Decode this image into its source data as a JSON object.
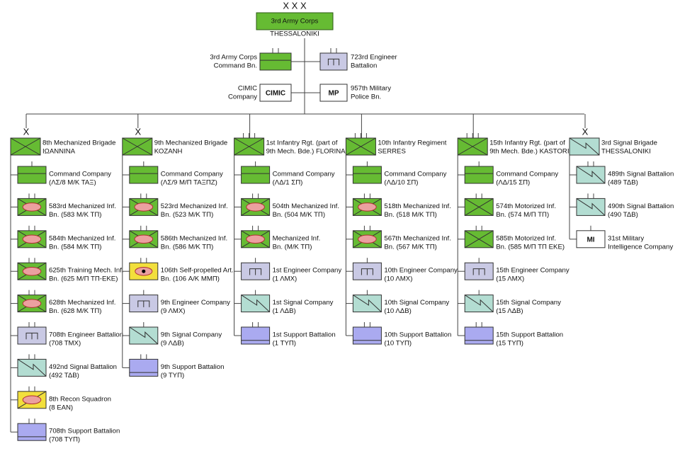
{
  "top": {
    "echelon": "X X X",
    "name": "3rd Army Corps",
    "location": "THESSALONIKI"
  },
  "staff": [
    {
      "lines": [
        "3rd Army Corps",
        "Command Bn."
      ],
      "symbol": "hq",
      "ticks": 2,
      "side": "left"
    },
    {
      "lines": [
        "723rd Engineer",
        "Battalion"
      ],
      "symbol": "engineer",
      "ticks": 2,
      "side": "right"
    },
    {
      "lines": [
        "CIMIC",
        "Company"
      ],
      "symbol": "plain",
      "box_label": "CIMIC",
      "side": "left"
    },
    {
      "lines": [
        "957th Military",
        "Police Bn."
      ],
      "symbol": "plain",
      "box_label": "MP",
      "side": "right"
    }
  ],
  "columns": [
    {
      "echelon": "X",
      "symbol": "brigade",
      "lines": [
        "8th Mechanized Brigade",
        "ΙΩΑΝΝΙΝΑ"
      ],
      "units": [
        {
          "lines": [
            "Command Company",
            "(ΛΣ/8 Μ/Κ ΤΑΞ)"
          ],
          "symbol": "hq",
          "ticks": 1
        },
        {
          "lines": [
            "583rd Mechanized Inf.",
            "Bn. (583 Μ/Κ ΤΠ)"
          ],
          "symbol": "mech",
          "ticks": 2
        },
        {
          "lines": [
            "584th Mechanized Inf.",
            "Bn. (584 Μ/Κ ΤΠ)"
          ],
          "symbol": "mech",
          "ticks": 2
        },
        {
          "lines": [
            "625th Training Mech. Inf.",
            "Bn. (625 Μ/Π ΤΠ-ΕΚΕ)"
          ],
          "symbol": "mech",
          "ticks": 2
        },
        {
          "lines": [
            "628th Mechanized Inf.",
            "Bn. (628 Μ/Κ ΤΠ)"
          ],
          "symbol": "mech",
          "ticks": 2
        },
        {
          "lines": [
            "708th Engineer Battalion",
            "(708 ΤΜΧ)"
          ],
          "symbol": "engineer",
          "ticks": 2
        },
        {
          "lines": [
            "492nd Signal Battalion",
            "(492 ΤΔΒ)"
          ],
          "symbol": "signal",
          "ticks": 2
        },
        {
          "lines": [
            "8th Recon Squadron",
            "(8 ΕΑΝ)"
          ],
          "symbol": "recon",
          "ticks": 2
        },
        {
          "lines": [
            "708th Support Battalion",
            "(708 ΤΥΠ)"
          ],
          "symbol": "support",
          "ticks": 2
        }
      ]
    },
    {
      "echelon": "X",
      "symbol": "brigade",
      "lines": [
        "9th Mechanized Brigade",
        "ΚΟΖΑΝΗ"
      ],
      "units": [
        {
          "lines": [
            "Command Company",
            "(ΛΣ/9 Μ/Π ΤΑΞΠΖ)"
          ],
          "symbol": "hq",
          "ticks": 1
        },
        {
          "lines": [
            "523rd Mechanized Inf.",
            "Bn. (523 Μ/Κ ΤΠ)"
          ],
          "symbol": "mech",
          "ticks": 2
        },
        {
          "lines": [
            "586th Mechanized Inf.",
            "Bn. (586 Μ/Κ ΤΠ)"
          ],
          "symbol": "mech",
          "ticks": 2
        },
        {
          "lines": [
            "106th Self-propelled Art.",
            "Bn. (106 Α/Κ ΜΜΠ)"
          ],
          "symbol": "artillery",
          "ticks": 2
        },
        {
          "lines": [
            "9th Engineer Company",
            "(9 ΛΜΧ)"
          ],
          "symbol": "engineer",
          "ticks": 1
        },
        {
          "lines": [
            "9th Signal Company",
            "(9 ΛΔΒ)"
          ],
          "symbol": "signal",
          "ticks": 1
        },
        {
          "lines": [
            "9th Support Battalion",
            "(9 ΤΥΠ)"
          ],
          "symbol": "support",
          "ticks": 2
        }
      ]
    },
    {
      "ticks": 3,
      "symbol": "brigade",
      "lines": [
        "1st Infantry Rgt. (part of",
        "9th Mech. Bde.) FLORINA"
      ],
      "units": [
        {
          "lines": [
            "Command Company",
            "(ΛΔ/1 ΣΠ)"
          ],
          "symbol": "hq",
          "ticks": 1
        },
        {
          "lines": [
            "504th Mechanized Inf.",
            "Bn. (504 Μ/Κ ΤΠ)"
          ],
          "symbol": "mech",
          "ticks": 2
        },
        {
          "lines": [
            "Mechanized Inf.",
            "Bn. (Μ/Κ ΤΠ)"
          ],
          "symbol": "mech",
          "ticks": 2
        },
        {
          "lines": [
            "1st Engineer Company",
            "(1 ΛΜΧ)"
          ],
          "symbol": "engineer",
          "ticks": 1
        },
        {
          "lines": [
            "1st Signal Company",
            "(1 ΛΔΒ)"
          ],
          "symbol": "signal",
          "ticks": 1
        },
        {
          "lines": [
            "1st Support Battalion",
            "(1 ΤΥΠ)"
          ],
          "symbol": "support",
          "ticks": 2
        }
      ]
    },
    {
      "ticks": 3,
      "symbol": "brigade",
      "lines": [
        "10th Infantry Regiment",
        "SERRES"
      ],
      "units": [
        {
          "lines": [
            "Command Company",
            "(ΛΔ/10 ΣΠ)"
          ],
          "symbol": "hq",
          "ticks": 1
        },
        {
          "lines": [
            "518th Mechanized Inf.",
            "Bn. (518 Μ/Κ ΤΠ)"
          ],
          "symbol": "mech",
          "ticks": 2
        },
        {
          "lines": [
            "567th Mechanized Inf.",
            "Bn. (567 Μ/Κ ΤΠ)"
          ],
          "symbol": "mech",
          "ticks": 2
        },
        {
          "lines": [
            "10th Engineer Company",
            "(10 ΛΜΧ)"
          ],
          "symbol": "engineer",
          "ticks": 1
        },
        {
          "lines": [
            "10th Signal Company",
            "(10 ΛΔΒ)"
          ],
          "symbol": "signal",
          "ticks": 1
        },
        {
          "lines": [
            "10th Support Battalion",
            "(10 ΤΥΠ)"
          ],
          "symbol": "support",
          "ticks": 2
        }
      ]
    },
    {
      "ticks": 3,
      "symbol": "brigade",
      "lines": [
        "15th Infantry Rgt. (part of",
        "9th Mech. Bde.) KASTORIA"
      ],
      "units": [
        {
          "lines": [
            "Command Company",
            "(ΛΔ/15 ΣΠ)"
          ],
          "symbol": "hq",
          "ticks": 1
        },
        {
          "lines": [
            "574th Motorized Inf.",
            "Bn. (574 Μ/Π ΤΠ)"
          ],
          "symbol": "motorized",
          "ticks": 2
        },
        {
          "lines": [
            "585th Motorized Inf.",
            "Bn. (585 Μ/Π ΤΠ ΕΚΕ)"
          ],
          "symbol": "motorized",
          "ticks": 2
        },
        {
          "lines": [
            "15th Engineer Company",
            "(15 ΛΜΧ)"
          ],
          "symbol": "engineer",
          "ticks": 1
        },
        {
          "lines": [
            "15th Signal Company",
            "(15 ΛΔΒ)"
          ],
          "symbol": "signal",
          "ticks": 1
        },
        {
          "lines": [
            "15th Support Battalion",
            "(15 ΤΥΠ)"
          ],
          "symbol": "support",
          "ticks": 2
        }
      ]
    },
    {
      "echelon": "X",
      "symbol": "signal",
      "lines": [
        "3rd Signal Brigade",
        "THESSALONIKI"
      ],
      "units": [
        {
          "lines": [
            "489th Signal Battalion",
            "(489 ΤΔΒ)"
          ],
          "symbol": "signal",
          "ticks": 2
        },
        {
          "lines": [
            "490th Signal Battalion",
            "(490 ΤΔΒ)"
          ],
          "symbol": "signal",
          "ticks": 2
        },
        {
          "lines": [
            "31st Military",
            "Intelligence Company"
          ],
          "symbol": "plain",
          "box_label": "MI",
          "ticks": 1
        }
      ]
    }
  ]
}
